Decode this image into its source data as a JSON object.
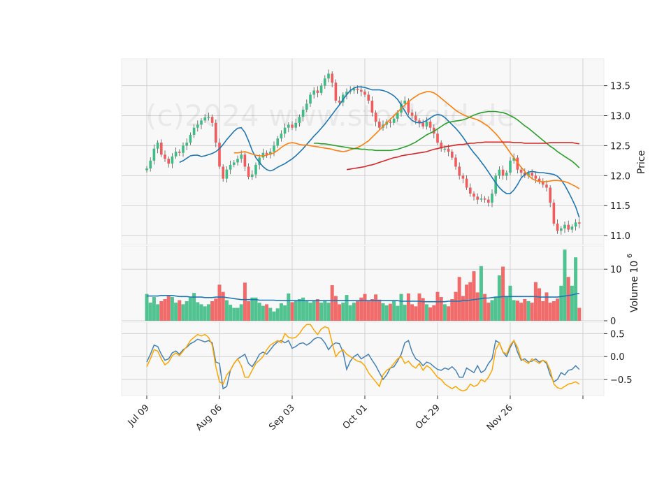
{
  "watermark": "(c)2024 www.stockoid.de",
  "colors": {
    "up": "#3dbd85",
    "down": "#f15b5b",
    "ma_blue": "#1f77b4",
    "ma_orange": "#ff7f0e",
    "ma_green": "#2ca02c",
    "ma_red": "#d62728",
    "vol_ma": "#1f77b4",
    "osc_blue": "#4682b4",
    "osc_orange": "#ffa500"
  },
  "chart_data": {
    "type": "candlestick",
    "x_tick_labels": [
      "Jul 09",
      "Aug 06",
      "Sep 03",
      "Oct 01",
      "Oct 29",
      "Nov 26"
    ],
    "x_tick_indices": [
      0,
      20,
      40,
      60,
      80,
      100
    ],
    "n_bars": 120,
    "price_panel": {
      "ylabel": "Price",
      "ylim": [
        10.85,
        13.95
      ],
      "yticks": [
        11.0,
        11.5,
        12.0,
        12.5,
        13.0,
        13.5
      ],
      "ytick_labels": [
        "11.0",
        "11.5",
        "12.0",
        "12.5",
        "13.0",
        "13.5"
      ],
      "close": [
        12.12,
        12.25,
        12.45,
        12.55,
        12.35,
        12.28,
        12.2,
        12.32,
        12.4,
        12.38,
        12.5,
        12.55,
        12.68,
        12.8,
        12.85,
        12.92,
        12.97,
        12.98,
        12.88,
        12.55,
        12.15,
        11.95,
        12.1,
        12.18,
        12.22,
        12.28,
        12.35,
        12.15,
        11.98,
        12.02,
        12.18,
        12.3,
        12.38,
        12.35,
        12.4,
        12.5,
        12.62,
        12.7,
        12.8,
        12.85,
        12.8,
        12.88,
        12.98,
        13.1,
        13.2,
        13.35,
        13.42,
        13.38,
        13.5,
        13.62,
        13.7,
        13.55,
        13.25,
        13.22,
        13.35,
        13.4,
        13.42,
        13.45,
        13.43,
        13.4,
        13.35,
        13.25,
        13.05,
        12.9,
        12.8,
        12.85,
        12.9,
        12.88,
        12.95,
        13.05,
        13.2,
        13.25,
        13.05,
        13.0,
        12.92,
        12.88,
        12.82,
        12.9,
        12.8,
        12.7,
        12.55,
        12.45,
        12.45,
        12.4,
        12.3,
        12.15,
        12.0,
        11.95,
        11.8,
        11.7,
        11.65,
        11.6,
        11.62,
        11.6,
        11.55,
        11.7,
        12.0,
        12.1,
        12.0,
        12.05,
        12.25,
        12.3,
        12.1,
        12.05,
        12.0,
        12.05,
        12.0,
        11.95,
        11.9,
        11.85,
        11.8,
        11.55,
        11.2,
        11.08,
        11.12,
        11.18,
        11.1,
        11.15,
        11.22,
        11.2
      ],
      "moving_averages": [
        {
          "color_key": "ma_blue",
          "values": [
            12.22,
            12.25,
            12.29,
            12.33,
            12.34,
            12.34,
            12.32,
            12.33,
            12.35,
            12.37,
            12.4,
            12.45,
            12.52,
            12.6,
            12.67,
            12.74,
            12.79,
            12.8,
            12.72,
            12.58,
            12.42,
            12.3,
            12.22,
            12.15,
            12.1,
            12.08,
            12.1,
            12.14,
            12.17,
            12.2,
            12.24,
            12.28,
            12.33,
            12.39,
            12.45,
            12.52,
            12.59,
            12.66,
            12.72,
            12.79,
            12.86,
            12.94,
            13.02,
            13.1,
            13.18,
            13.27,
            13.35,
            13.42,
            13.46,
            13.48,
            13.48,
            13.47,
            13.45,
            13.43,
            13.43,
            13.43,
            13.42,
            13.4,
            13.37,
            13.33,
            13.27,
            13.18,
            13.08,
            12.98,
            12.92,
            12.89,
            12.88,
            12.89,
            12.92,
            12.96,
            13.0,
            13.02,
            13.01,
            12.97,
            12.91,
            12.85,
            12.79,
            12.72,
            12.64,
            12.55,
            12.46,
            12.38,
            12.31,
            12.23,
            12.15,
            12.06,
            11.97,
            11.88,
            11.8,
            11.74,
            11.7,
            11.7,
            11.76,
            11.85,
            11.96,
            12.02,
            12.06,
            12.07,
            12.06,
            12.05,
            12.05,
            12.04,
            12.03,
            12.02,
            11.99,
            11.93,
            11.84,
            11.73,
            11.61,
            11.48,
            11.3
          ]
        },
        {
          "color_key": "ma_orange",
          "values": [
            12.38,
            12.38,
            12.39,
            12.4,
            12.38,
            12.36,
            12.34,
            12.33,
            12.33,
            12.34,
            12.36,
            12.38,
            12.42,
            12.47,
            12.51,
            12.54,
            12.55,
            12.54,
            12.52,
            12.51,
            12.51,
            12.5,
            12.49,
            12.48,
            12.47,
            12.46,
            12.45,
            12.44,
            12.42,
            12.41,
            12.4,
            12.41,
            12.43,
            12.45,
            12.47,
            12.5,
            12.54,
            12.58,
            12.64,
            12.7,
            12.76,
            12.82,
            12.88,
            12.94,
            13.0,
            13.06,
            13.12,
            13.18,
            13.23,
            13.28,
            13.32,
            13.36,
            13.38,
            13.4,
            13.4,
            13.38,
            13.34,
            13.29,
            13.24,
            13.19,
            13.14,
            13.09,
            13.05,
            13.02,
            12.99,
            12.97,
            12.95,
            12.93,
            12.9,
            12.86,
            12.82,
            12.76,
            12.7,
            12.63,
            12.55,
            12.47,
            12.38,
            12.3,
            12.22,
            12.14,
            12.07,
            12.0,
            11.95,
            11.92,
            11.9,
            11.9,
            11.9,
            11.91,
            11.92,
            11.92,
            11.91,
            11.9,
            11.88,
            11.85,
            11.82,
            11.78
          ]
        },
        {
          "color_key": "ma_green",
          "values": [
            12.54,
            12.54,
            12.53,
            12.53,
            12.52,
            12.51,
            12.5,
            12.49,
            12.48,
            12.47,
            12.46,
            12.45,
            12.45,
            12.44,
            12.44,
            12.43,
            12.43,
            12.42,
            12.42,
            12.42,
            12.42,
            12.42,
            12.43,
            12.44,
            12.46,
            12.48,
            12.5,
            12.53,
            12.56,
            12.6,
            12.64,
            12.68,
            12.71,
            12.74,
            12.78,
            12.82,
            12.86,
            12.89,
            12.9,
            12.91,
            12.92,
            12.93,
            12.95,
            12.98,
            13.01,
            13.03,
            13.05,
            13.06,
            13.07,
            13.07,
            13.07,
            13.06,
            13.05,
            13.03,
            13.0,
            12.97,
            12.93,
            12.88,
            12.83,
            12.79,
            12.74,
            12.69,
            12.64,
            12.59,
            12.54,
            12.49,
            12.45,
            12.4,
            12.36,
            12.32,
            12.28,
            12.24,
            12.19,
            12.13
          ]
        },
        {
          "color_key": "ma_red",
          "values": [
            12.1,
            12.11,
            12.12,
            12.13,
            12.14,
            12.15,
            12.17,
            12.18,
            12.2,
            12.22,
            12.24,
            12.26,
            12.28,
            12.3,
            12.31,
            12.33,
            12.34,
            12.35,
            12.36,
            12.37,
            12.38,
            12.39,
            12.4,
            12.42,
            12.44,
            12.45,
            12.47,
            12.48,
            12.49,
            12.5,
            12.51,
            12.52,
            12.52,
            12.53,
            12.54,
            12.54,
            12.55,
            12.55,
            12.56,
            12.56,
            12.56,
            12.56,
            12.56,
            12.56,
            12.56,
            12.56,
            12.55,
            12.55,
            12.55,
            12.54,
            12.54,
            12.54,
            12.54,
            12.54,
            12.54,
            12.54,
            12.55,
            12.55,
            12.55,
            12.55,
            12.55,
            12.55,
            12.55,
            12.54,
            12.53
          ]
        }
      ]
    },
    "volume_panel": {
      "ylabel": "Volume  10",
      "ylabel_exponent": "6",
      "ylim": [
        0,
        14.5
      ],
      "yticks": [
        0,
        10
      ],
      "ytick_labels": [
        "0",
        "10"
      ],
      "values": [
        5.2,
        3.5,
        4.6,
        3.2,
        3.8,
        4.2,
        4.8,
        4.6,
        3.5,
        4.0,
        3.2,
        3.8,
        4.5,
        5.4,
        3.6,
        3.2,
        2.8,
        3.2,
        3.8,
        4.3,
        7.0,
        5.6,
        4.0,
        3.1,
        2.5,
        2.5,
        3.2,
        7.4,
        3.8,
        4.5,
        4.5,
        3.5,
        2.9,
        3.2,
        2.5,
        1.8,
        2.4,
        3.4,
        3.0,
        5.3,
        3.6,
        3.8,
        4.2,
        4.5,
        3.8,
        3.5,
        4.0,
        4.2,
        3.5,
        3.8,
        3.5,
        6.9,
        4.8,
        3.2,
        3.5,
        5.0,
        3.0,
        3.5,
        3.8,
        4.5,
        5.2,
        3.8,
        4.2,
        5.1,
        4.1,
        3.4,
        3.0,
        3.3,
        3.8,
        2.9,
        5.2,
        3.1,
        5.3,
        3.2,
        2.8,
        5.3,
        4.4,
        3.2,
        2.6,
        3.0,
        5.6,
        4.6,
        3.2,
        2.8,
        4.2,
        5.6,
        8.5,
        4.8,
        7.0,
        7.5,
        9.6,
        5.5,
        10.6,
        5.2,
        3.5,
        4.0,
        4.5,
        8.8,
        10.5,
        4.8,
        6.8,
        4.0,
        3.9,
        3.5,
        4.2,
        3.8,
        3.5,
        7.5,
        6.3,
        3.8,
        5.5,
        3.5,
        3.8,
        4.3,
        6.8,
        13.8,
        8.5,
        6.8,
        12.3,
        2.5
      ],
      "ma": [
        4.8,
        4.8,
        4.8,
        4.8,
        4.9,
        4.9,
        4.9,
        4.9,
        4.8,
        4.7,
        4.7,
        4.7,
        4.6,
        4.6,
        4.6,
        4.6,
        4.5,
        4.5,
        4.5,
        4.6,
        4.6,
        4.6,
        4.5,
        4.4,
        4.3,
        4.2,
        4.1,
        4.1,
        4.1,
        4.1,
        4.1,
        4.0,
        4.0,
        4.0,
        4.0,
        4.0,
        3.9,
        3.9,
        3.9,
        3.9,
        3.9,
        3.9,
        3.9,
        3.9,
        3.9,
        3.9,
        3.9,
        3.9,
        3.9,
        3.9,
        3.9,
        3.9,
        3.9,
        3.9,
        3.9,
        3.9,
        3.9,
        3.9,
        3.9,
        3.9,
        3.9,
        3.9,
        3.9,
        3.9,
        3.9,
        3.9,
        3.9,
        3.9,
        3.9,
        3.9,
        3.8,
        3.8,
        3.8,
        3.8,
        3.8,
        3.8,
        3.7,
        3.7,
        3.7,
        3.7,
        3.7,
        3.7,
        3.7,
        3.8,
        3.8,
        3.8,
        3.8,
        3.9,
        3.9,
        4.0,
        4.1,
        4.2,
        4.3,
        4.4,
        4.4,
        4.5,
        4.6,
        4.6,
        4.7,
        4.7,
        4.7,
        4.7,
        4.7,
        4.7,
        4.7,
        4.7,
        4.7,
        4.7,
        4.6,
        4.6,
        4.6,
        4.6,
        4.6,
        4.6,
        4.7,
        4.8,
        4.9,
        5.0,
        5.2,
        5.3
      ]
    },
    "oscillator_panel": {
      "ylim": [
        -0.85,
        0.75
      ],
      "yticks": [
        -0.5,
        0.0,
        0.5
      ],
      "ytick_labels": [
        "−0.5",
        "0.0",
        "0.5"
      ],
      "series": [
        {
          "color_key": "osc_blue",
          "values": [
            -0.12,
            0.05,
            0.25,
            0.22,
            0.05,
            -0.08,
            -0.05,
            0.08,
            0.12,
            0.05,
            0.15,
            0.2,
            0.28,
            0.32,
            0.38,
            0.35,
            0.32,
            0.35,
            0.3,
            -0.12,
            -0.15,
            -0.7,
            -0.65,
            -0.3,
            -0.15,
            -0.05,
            0.0,
            0.05,
            -0.15,
            -0.22,
            -0.1,
            0.05,
            0.1,
            0.05,
            0.15,
            0.25,
            0.32,
            0.35,
            0.3,
            0.35,
            0.18,
            0.22,
            0.28,
            0.3,
            0.25,
            0.3,
            0.38,
            0.42,
            0.4,
            0.3,
            0.15,
            0.25,
            0.3,
            0.28,
            0.1,
            -0.28,
            -0.1,
            0.0,
            0.05,
            -0.05,
            0.0,
            0.05,
            -0.08,
            -0.2,
            -0.35,
            -0.5,
            -0.4,
            -0.25,
            -0.22,
            -0.1,
            0.05,
            0.3,
            0.35,
            0.1,
            -0.05,
            -0.1,
            -0.2,
            -0.12,
            -0.15,
            -0.22,
            -0.28,
            -0.3,
            -0.25,
            -0.28,
            -0.22,
            -0.3,
            -0.45,
            -0.45,
            -0.25,
            -0.3,
            -0.35,
            -0.2,
            -0.35,
            -0.3,
            -0.15,
            -0.05,
            0.35,
            0.3,
            0.1,
            0.0,
            0.2,
            0.35,
            0.1,
            -0.08,
            -0.05,
            -0.12,
            -0.1,
            -0.05,
            -0.12,
            -0.08,
            -0.15,
            -0.4,
            -0.55,
            -0.5,
            -0.35,
            -0.4,
            -0.3,
            -0.28,
            -0.2,
            -0.28
          ]
        },
        {
          "color_key": "osc_orange",
          "values": [
            -0.22,
            -0.05,
            0.15,
            0.12,
            -0.05,
            -0.18,
            -0.12,
            0.02,
            0.08,
            0.02,
            0.12,
            0.22,
            0.35,
            0.42,
            0.48,
            0.45,
            0.48,
            0.42,
            0.25,
            -0.22,
            -0.55,
            -0.6,
            -0.4,
            -0.3,
            -0.15,
            -0.05,
            -0.2,
            -0.45,
            -0.45,
            -0.3,
            -0.15,
            -0.08,
            0.0,
            0.15,
            0.25,
            0.3,
            0.35,
            0.3,
            0.5,
            0.42,
            0.4,
            0.42,
            0.5,
            0.62,
            0.7,
            0.7,
            0.58,
            0.48,
            0.6,
            0.65,
            0.62,
            0.3,
            0.0,
            0.1,
            0.15,
            0.05,
            0.0,
            -0.05,
            -0.1,
            -0.12,
            -0.2,
            -0.35,
            -0.45,
            -0.55,
            -0.65,
            -0.4,
            -0.3,
            -0.25,
            -0.15,
            -0.05,
            0.0,
            -0.15,
            -0.1,
            -0.2,
            -0.25,
            -0.15,
            -0.3,
            -0.2,
            -0.25,
            -0.35,
            -0.45,
            -0.5,
            -0.6,
            -0.65,
            -0.7,
            -0.65,
            -0.72,
            -0.75,
            -0.72,
            -0.6,
            -0.65,
            -0.62,
            -0.5,
            -0.55,
            -0.45,
            -0.3,
            0.15,
            0.3,
            0.1,
            0.05,
            0.25,
            0.35,
            0.2,
            -0.05,
            -0.1,
            -0.15,
            -0.05,
            -0.1,
            -0.15,
            -0.08,
            -0.12,
            -0.3,
            -0.6,
            -0.68,
            -0.7,
            -0.65,
            -0.6,
            -0.58,
            -0.55,
            -0.6
          ]
        }
      ]
    }
  }
}
